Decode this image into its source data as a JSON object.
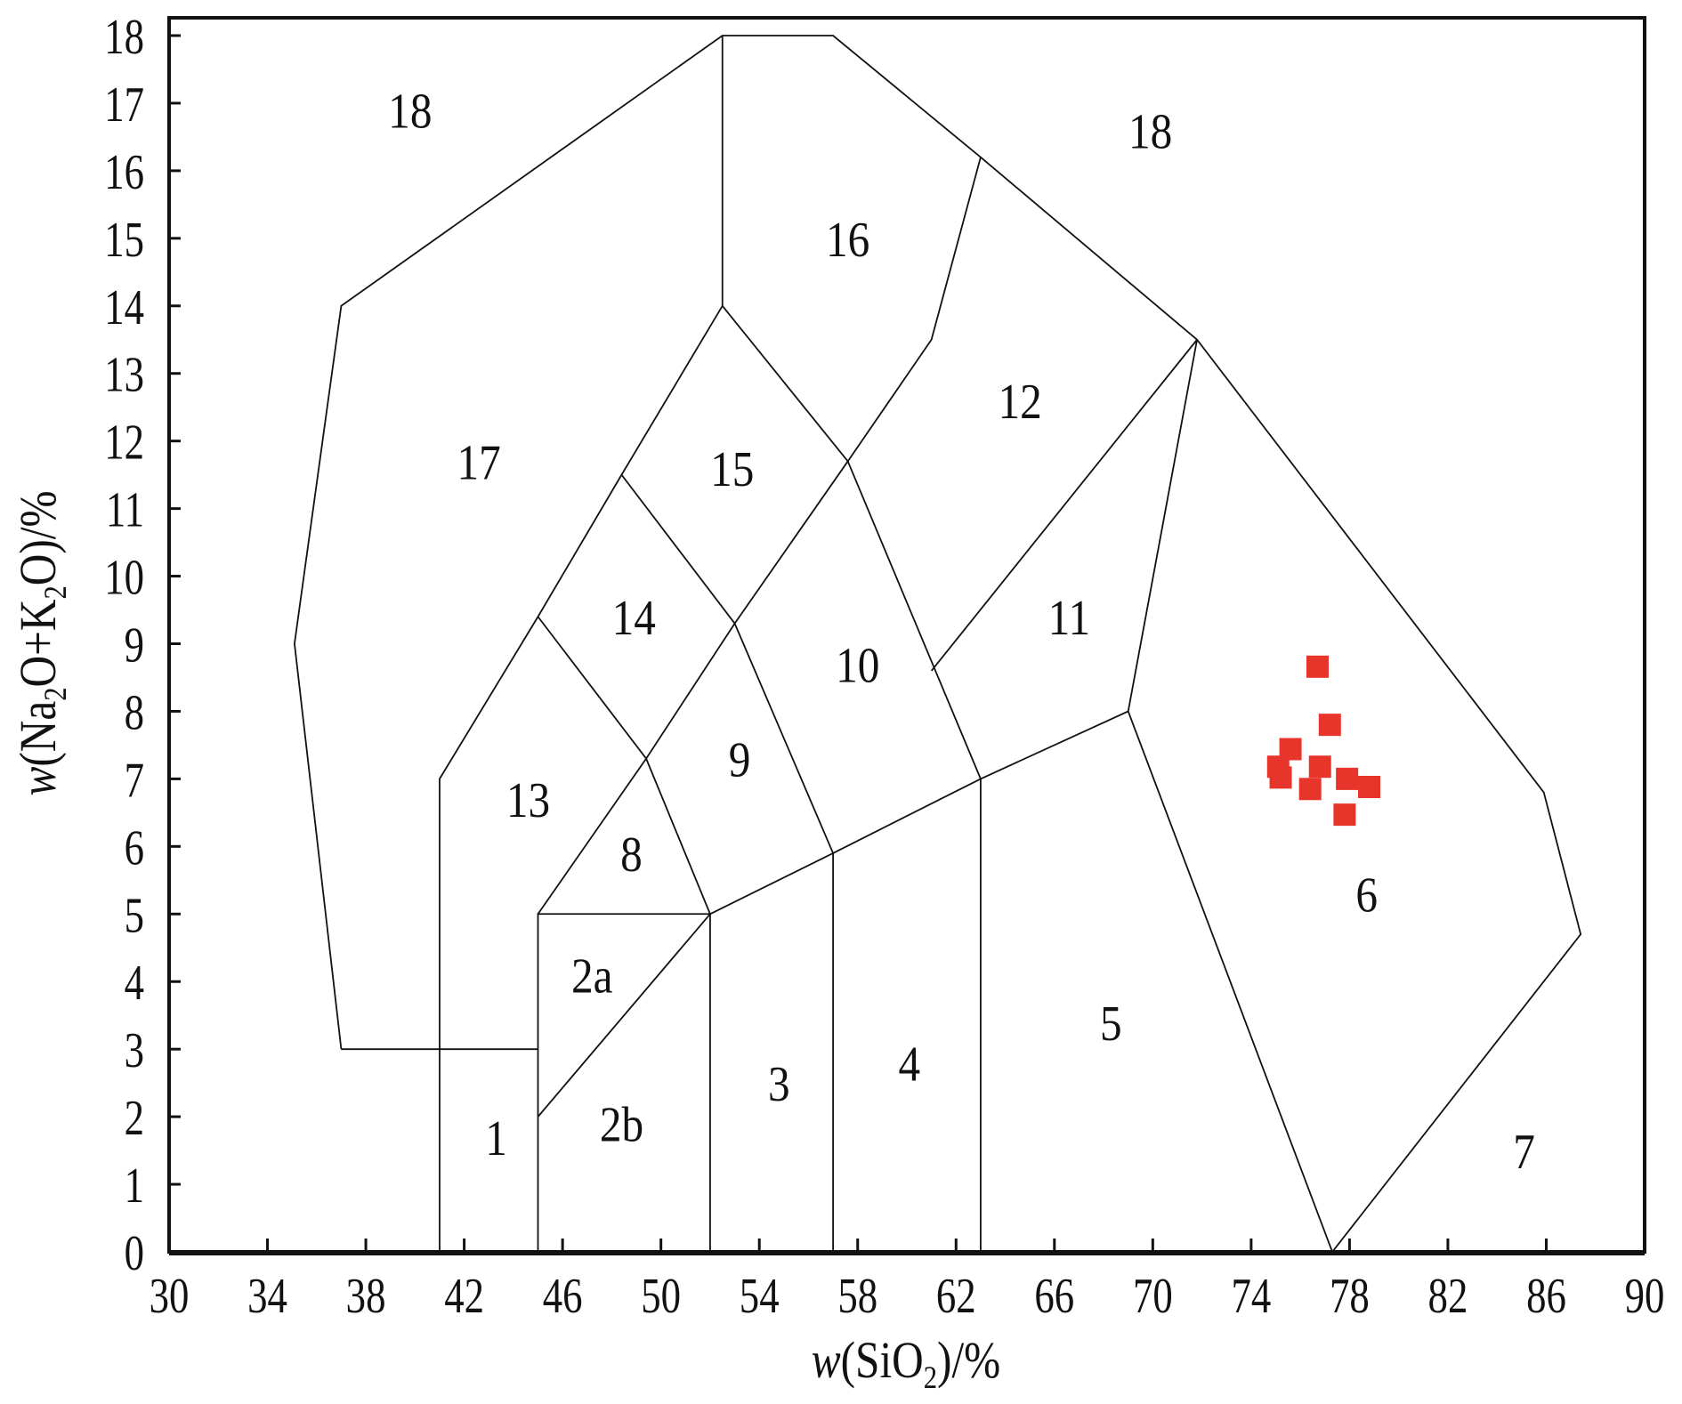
{
  "chart_data": {
    "type": "scatter",
    "title": "",
    "xlabel": "w(SiO2)/%",
    "xlabel_parts": {
      "pre": "w",
      "main": "(SiO",
      "sub": "2",
      "post": ")/%"
    },
    "ylabel": "w(Na2O+K2O)/%",
    "ylabel_parts": {
      "pre": "w",
      "a": "(Na",
      "sub1": "2",
      "b": "O+K",
      "sub2": "2",
      "c": "O)/%"
    },
    "xlim": [
      30,
      90
    ],
    "ylim": [
      0,
      18
    ],
    "xticks": [
      30,
      34,
      38,
      42,
      46,
      50,
      54,
      58,
      62,
      66,
      70,
      74,
      78,
      82,
      86,
      90
    ],
    "yticks": [
      0,
      1,
      2,
      3,
      4,
      5,
      6,
      7,
      8,
      9,
      10,
      11,
      12,
      13,
      14,
      15,
      16,
      17,
      18
    ],
    "grid": false,
    "marker_color": "#e8352c",
    "marker": "square",
    "points": [
      {
        "x": 76.7,
        "y": 8.66
      },
      {
        "x": 77.2,
        "y": 7.8
      },
      {
        "x": 75.6,
        "y": 7.44
      },
      {
        "x": 75.1,
        "y": 7.18
      },
      {
        "x": 75.2,
        "y": 7.02
      },
      {
        "x": 76.8,
        "y": 7.18
      },
      {
        "x": 76.4,
        "y": 6.85
      },
      {
        "x": 77.9,
        "y": 7.0
      },
      {
        "x": 78.8,
        "y": 6.88
      },
      {
        "x": 77.8,
        "y": 6.47
      }
    ],
    "field_boundaries": [
      [
        [
          37,
          3
        ],
        [
          35.1,
          9
        ],
        [
          37,
          14
        ],
        [
          52.5,
          18
        ],
        [
          57,
          18
        ],
        [
          63,
          16.2
        ],
        [
          71.8,
          13.5
        ],
        [
          85.9,
          6.8
        ],
        [
          87.4,
          4.7
        ],
        [
          77.3,
          0
        ],
        [
          69,
          8
        ]
      ],
      [
        [
          37,
          3
        ],
        [
          45,
          3
        ]
      ],
      [
        [
          41,
          0
        ],
        [
          41,
          7
        ],
        [
          45,
          9.4
        ],
        [
          48.4,
          11.5
        ],
        [
          52.5,
          14
        ],
        [
          52.5,
          18
        ]
      ],
      [
        [
          52.5,
          14
        ],
        [
          57.6,
          11.7
        ],
        [
          61,
          13.5
        ],
        [
          63,
          16.2
        ]
      ],
      [
        [
          45,
          0
        ],
        [
          45,
          5
        ],
        [
          52,
          5
        ]
      ],
      [
        [
          45,
          2
        ],
        [
          52,
          5
        ]
      ],
      [
        [
          52,
          0
        ],
        [
          52,
          5
        ],
        [
          57,
          5.9
        ],
        [
          63,
          7
        ],
        [
          69,
          8
        ],
        [
          71.8,
          13.5
        ]
      ],
      [
        [
          57,
          0
        ],
        [
          57,
          5.9
        ]
      ],
      [
        [
          63,
          0
        ],
        [
          63,
          7
        ]
      ],
      [
        [
          45,
          9.4
        ],
        [
          49.4,
          7.3
        ],
        [
          52,
          5
        ]
      ],
      [
        [
          48.4,
          11.5
        ],
        [
          53,
          9.3
        ],
        [
          57,
          5.9
        ]
      ],
      [
        [
          45,
          5
        ],
        [
          49.4,
          7.3
        ],
        [
          53,
          9.3
        ],
        [
          57.6,
          11.7
        ]
      ],
      [
        [
          57.6,
          11.7
        ],
        [
          63,
          7
        ]
      ],
      [
        [
          61,
          8.6
        ],
        [
          71.8,
          13.5
        ]
      ]
    ],
    "field_labels": [
      {
        "text": "18",
        "x": 39.8,
        "y": 16.9
      },
      {
        "text": "18",
        "x": 69.9,
        "y": 16.6
      },
      {
        "text": "16",
        "x": 57.6,
        "y": 15.0
      },
      {
        "text": "12",
        "x": 64.6,
        "y": 12.6
      },
      {
        "text": "17",
        "x": 42.6,
        "y": 11.7
      },
      {
        "text": "15",
        "x": 52.9,
        "y": 11.6
      },
      {
        "text": "14",
        "x": 48.9,
        "y": 9.4
      },
      {
        "text": "11",
        "x": 66.6,
        "y": 9.4
      },
      {
        "text": "10",
        "x": 58.0,
        "y": 8.7
      },
      {
        "text": "9",
        "x": 53.2,
        "y": 7.3
      },
      {
        "text": "13",
        "x": 44.6,
        "y": 6.7
      },
      {
        "text": "8",
        "x": 48.8,
        "y": 5.9
      },
      {
        "text": "6",
        "x": 78.7,
        "y": 5.3
      },
      {
        "text": "2a",
        "x": 47.2,
        "y": 4.1
      },
      {
        "text": "5",
        "x": 68.3,
        "y": 3.4
      },
      {
        "text": "4",
        "x": 60.1,
        "y": 2.8
      },
      {
        "text": "3",
        "x": 54.8,
        "y": 2.5
      },
      {
        "text": "2b",
        "x": 48.4,
        "y": 1.9
      },
      {
        "text": "1",
        "x": 43.3,
        "y": 1.7
      },
      {
        "text": "7",
        "x": 85.1,
        "y": 1.5
      }
    ]
  }
}
